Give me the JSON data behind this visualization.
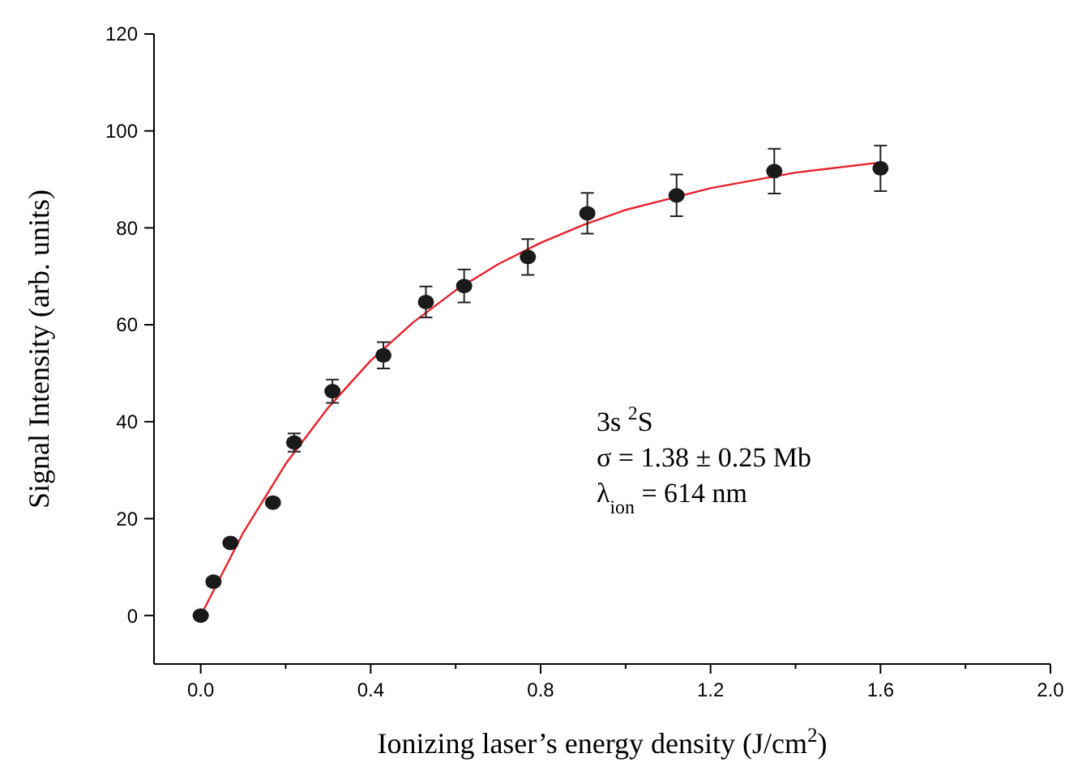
{
  "chart_data": {
    "type": "scatter",
    "xlabel": "Ionizing laser’s energy density (J/cm$^{2}$)",
    "ylabel": "Signal Intensity (arb. units)",
    "xlim": [
      -0.11,
      2.0
    ],
    "ylim": [
      -10,
      120
    ],
    "xticks": [
      {
        "value": 0,
        "label": "0.0"
      },
      {
        "value": 0.2,
        "label": null
      },
      {
        "value": 0.4,
        "label": "0.4"
      },
      {
        "value": 0.6,
        "label": null
      },
      {
        "value": 0.8,
        "label": "0.8"
      },
      {
        "value": 1.0,
        "label": null
      },
      {
        "value": 1.2,
        "label": "1.2"
      },
      {
        "value": 1.4,
        "label": null
      },
      {
        "value": 1.6,
        "label": "1.6"
      },
      {
        "value": 1.8,
        "label": null
      },
      {
        "value": 2.0,
        "label": "2.0"
      }
    ],
    "yticks": [
      0,
      20,
      40,
      60,
      80,
      100,
      120
    ],
    "grid": false,
    "marker": "circle",
    "series": [
      {
        "type": "line",
        "color": "#e8202a",
        "marker": "none",
        "x": [
          0,
          0.1,
          0.2,
          0.3,
          0.4,
          0.5,
          0.6,
          0.7,
          0.8,
          0.9,
          1.0,
          1.2,
          1.4,
          1.6
        ],
        "values": [
          0,
          17.1,
          31.3,
          42.9,
          52.6,
          60.5,
          67.1,
          72.5,
          76.9,
          80.6,
          83.7,
          88.2,
          91.4,
          93.5
        ]
      },
      {
        "color": "#1a1a1a",
        "x": [
          0.0,
          0.03,
          0.07,
          0.17,
          0.22,
          0.31,
          0.43,
          0.53,
          0.62,
          0.77,
          0.91,
          1.12,
          1.35,
          1.6
        ],
        "values": [
          0,
          7,
          15,
          23.3,
          35.7,
          46.3,
          53.7,
          64.7,
          68,
          74,
          83,
          86.7,
          91.7,
          92.3
        ],
        "errors": [
          null,
          null,
          null,
          null,
          1.9,
          2.4,
          2.7,
          3.2,
          3.4,
          3.7,
          4.2,
          4.3,
          4.6,
          4.7
        ]
      }
    ],
    "annotations": [
      {
        "text": "3s $^{2}$S"
      },
      {
        "text": "σ   = 1.38 ± 0.25 Mb"
      },
      {
        "text": "λ$_{ion}$ = 614 nm"
      }
    ]
  }
}
